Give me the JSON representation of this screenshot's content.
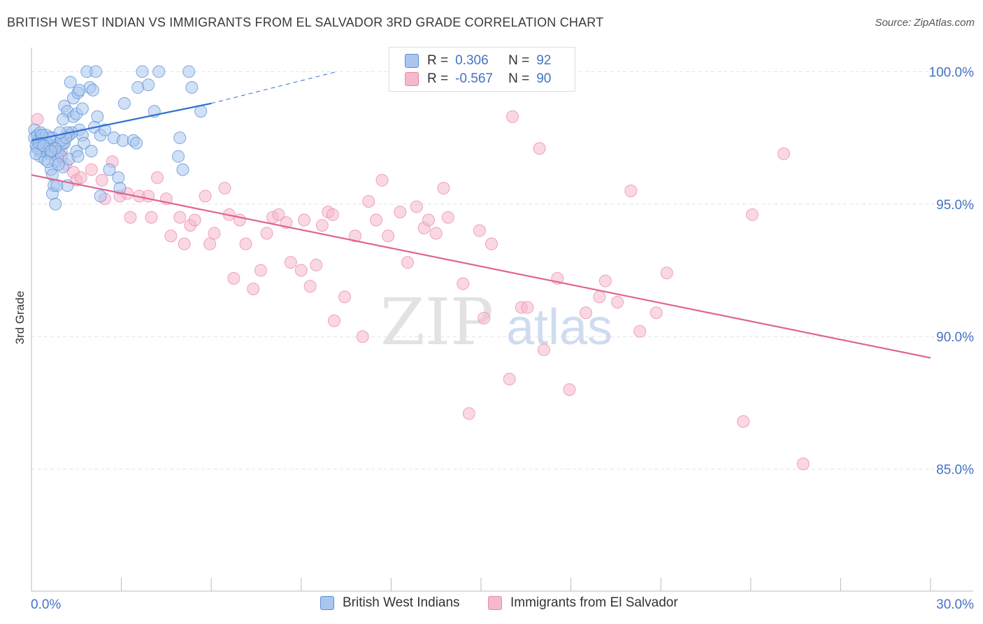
{
  "title": "BRITISH WEST INDIAN VS IMMIGRANTS FROM EL SALVADOR 3RD GRADE CORRELATION CHART",
  "source": "Source: ZipAtlas.com",
  "watermark": {
    "zip": "ZIP",
    "atlas": "atlas"
  },
  "legend": {
    "rows": [
      {
        "r_label": "R =",
        "r_value": "0.306",
        "n_label": "N =",
        "n_value": "92"
      },
      {
        "r_label": "R =",
        "r_value": "-0.567",
        "n_label": "N =",
        "n_value": "90"
      }
    ]
  },
  "bottom_legend": [
    "British West Indians",
    "Immigrants from El Salvador"
  ],
  "colors": {
    "blue_fill": "#aac6ef",
    "blue_stroke": "#5b8fd6",
    "blue_line": "#2e6fd0",
    "pink_fill": "#f6b8cc",
    "pink_stroke": "#e889a8",
    "pink_line": "#e0648e",
    "axis_text": "#4472c4",
    "grid": "#e3e3e3"
  },
  "chart_data": {
    "type": "scatter",
    "title": "BRITISH WEST INDIAN VS IMMIGRANTS FROM EL SALVADOR 3RD GRADE CORRELATION CHART",
    "xlabel": "",
    "ylabel": "3rd Grade",
    "xlim": [
      0,
      30
    ],
    "ylim": [
      80.4,
      100.8
    ],
    "x_tick_labels": [
      "0.0%",
      "30.0%"
    ],
    "y_ticks": [
      85,
      90,
      95,
      100
    ],
    "y_tick_labels": [
      "85.0%",
      "90.0%",
      "95.0%",
      "100.0%"
    ],
    "grid": true,
    "series": [
      {
        "name": "British West Indians",
        "r": 0.306,
        "n": 92,
        "trend": {
          "x": [
            0.0,
            6.0
          ],
          "y": [
            97.4,
            98.8
          ],
          "dashed_to": [
            10.2,
            100.0
          ]
        },
        "points": [
          [
            0.1,
            97.8
          ],
          [
            0.1,
            97.5
          ],
          [
            0.15,
            97.2
          ],
          [
            0.2,
            97.6
          ],
          [
            0.25,
            97.4
          ],
          [
            0.3,
            97.7
          ],
          [
            0.35,
            97.3
          ],
          [
            0.4,
            97.5
          ],
          [
            0.45,
            97.1
          ],
          [
            0.5,
            97.6
          ],
          [
            0.55,
            97.2
          ],
          [
            0.6,
            96.9
          ],
          [
            0.7,
            97.5
          ],
          [
            0.75,
            97.2
          ],
          [
            0.8,
            96.6
          ],
          [
            0.9,
            97.0
          ],
          [
            1.0,
            96.8
          ],
          [
            1.05,
            96.4
          ],
          [
            1.1,
            97.3
          ],
          [
            0.65,
            96.3
          ],
          [
            0.7,
            96.1
          ],
          [
            0.75,
            95.7
          ],
          [
            0.7,
            95.4
          ],
          [
            0.8,
            95.0
          ],
          [
            0.85,
            95.7
          ],
          [
            1.2,
            95.7
          ],
          [
            1.25,
            96.7
          ],
          [
            1.05,
            97.3
          ],
          [
            1.1,
            98.7
          ],
          [
            1.2,
            98.5
          ],
          [
            1.4,
            98.3
          ],
          [
            1.5,
            98.4
          ],
          [
            1.6,
            97.8
          ],
          [
            1.7,
            97.6
          ],
          [
            1.7,
            98.6
          ],
          [
            1.3,
            99.6
          ],
          [
            1.4,
            99.0
          ],
          [
            1.55,
            99.2
          ],
          [
            1.95,
            99.4
          ],
          [
            2.05,
            99.3
          ],
          [
            1.85,
            100.0
          ],
          [
            2.15,
            100.0
          ],
          [
            1.6,
            99.3
          ],
          [
            1.5,
            97.0
          ],
          [
            1.35,
            97.7
          ],
          [
            1.25,
            97.6
          ],
          [
            1.0,
            97.4
          ],
          [
            1.05,
            98.2
          ],
          [
            1.2,
            97.7
          ],
          [
            1.55,
            96.8
          ],
          [
            1.75,
            97.3
          ],
          [
            2.0,
            97.0
          ],
          [
            2.1,
            97.9
          ],
          [
            2.2,
            98.3
          ],
          [
            2.3,
            97.6
          ],
          [
            2.45,
            97.8
          ],
          [
            2.6,
            96.3
          ],
          [
            2.75,
            97.5
          ],
          [
            2.9,
            96.0
          ],
          [
            2.3,
            95.3
          ],
          [
            2.95,
            95.6
          ],
          [
            3.1,
            98.8
          ],
          [
            3.05,
            97.4
          ],
          [
            3.4,
            97.4
          ],
          [
            3.55,
            99.4
          ],
          [
            3.5,
            97.3
          ],
          [
            3.7,
            100.0
          ],
          [
            3.9,
            99.5
          ],
          [
            4.1,
            98.5
          ],
          [
            4.25,
            100.0
          ],
          [
            4.9,
            96.8
          ],
          [
            4.95,
            97.5
          ],
          [
            5.05,
            96.3
          ],
          [
            5.25,
            100.0
          ],
          [
            5.35,
            99.4
          ],
          [
            5.65,
            98.5
          ],
          [
            0.3,
            96.8
          ],
          [
            0.45,
            96.7
          ],
          [
            0.55,
            96.6
          ],
          [
            0.3,
            97.0
          ],
          [
            0.2,
            97.1
          ],
          [
            0.15,
            96.9
          ],
          [
            0.5,
            97.3
          ],
          [
            0.6,
            97.5
          ],
          [
            0.35,
            97.6
          ],
          [
            0.25,
            97.3
          ],
          [
            0.8,
            97.1
          ],
          [
            0.9,
            96.5
          ],
          [
            1.15,
            97.5
          ],
          [
            0.4,
            97.2
          ],
          [
            0.65,
            97.0
          ],
          [
            0.95,
            97.7
          ]
        ]
      },
      {
        "name": "Immigrants from El Salvador",
        "r": -0.567,
        "n": 90,
        "trend": {
          "x": [
            0.0,
            30.0
          ],
          "y": [
            96.1,
            89.2
          ]
        },
        "points": [
          [
            0.2,
            98.2
          ],
          [
            0.45,
            97.4
          ],
          [
            0.65,
            97.2
          ],
          [
            0.85,
            96.8
          ],
          [
            1.15,
            96.5
          ],
          [
            1.4,
            96.2
          ],
          [
            1.5,
            95.9
          ],
          [
            1.65,
            96.0
          ],
          [
            2.0,
            96.3
          ],
          [
            2.35,
            95.9
          ],
          [
            2.45,
            95.2
          ],
          [
            2.7,
            96.6
          ],
          [
            2.95,
            95.3
          ],
          [
            3.2,
            95.4
          ],
          [
            3.3,
            94.5
          ],
          [
            3.6,
            95.3
          ],
          [
            3.9,
            95.3
          ],
          [
            4.0,
            94.5
          ],
          [
            4.2,
            96.0
          ],
          [
            4.5,
            95.2
          ],
          [
            4.65,
            93.8
          ],
          [
            4.95,
            94.5
          ],
          [
            5.1,
            93.5
          ],
          [
            5.3,
            94.2
          ],
          [
            5.45,
            94.4
          ],
          [
            5.8,
            95.3
          ],
          [
            5.95,
            93.5
          ],
          [
            6.1,
            93.9
          ],
          [
            6.45,
            95.6
          ],
          [
            6.6,
            94.6
          ],
          [
            6.75,
            92.2
          ],
          [
            6.95,
            94.4
          ],
          [
            7.15,
            93.5
          ],
          [
            7.4,
            91.8
          ],
          [
            7.65,
            92.5
          ],
          [
            7.85,
            93.9
          ],
          [
            8.05,
            94.5
          ],
          [
            8.25,
            94.6
          ],
          [
            8.5,
            94.3
          ],
          [
            8.65,
            92.8
          ],
          [
            9.0,
            92.5
          ],
          [
            9.1,
            94.4
          ],
          [
            9.3,
            91.9
          ],
          [
            9.5,
            92.7
          ],
          [
            9.7,
            94.2
          ],
          [
            9.9,
            94.7
          ],
          [
            10.05,
            94.6
          ],
          [
            10.1,
            90.6
          ],
          [
            10.45,
            91.5
          ],
          [
            10.8,
            93.8
          ],
          [
            11.05,
            90.0
          ],
          [
            11.25,
            95.1
          ],
          [
            11.5,
            94.4
          ],
          [
            11.7,
            95.9
          ],
          [
            11.9,
            93.8
          ],
          [
            12.3,
            94.7
          ],
          [
            12.55,
            92.8
          ],
          [
            12.85,
            94.9
          ],
          [
            13.1,
            94.1
          ],
          [
            13.25,
            94.4
          ],
          [
            13.5,
            93.9
          ],
          [
            13.75,
            95.6
          ],
          [
            13.9,
            94.5
          ],
          [
            14.4,
            92.0
          ],
          [
            14.6,
            87.1
          ],
          [
            14.95,
            94.0
          ],
          [
            15.1,
            90.7
          ],
          [
            15.35,
            93.5
          ],
          [
            15.95,
            88.4
          ],
          [
            16.35,
            91.1
          ],
          [
            16.05,
            98.3
          ],
          [
            16.55,
            91.1
          ],
          [
            16.95,
            97.1
          ],
          [
            17.1,
            89.5
          ],
          [
            17.55,
            92.2
          ],
          [
            17.95,
            88.0
          ],
          [
            18.5,
            90.9
          ],
          [
            18.95,
            91.5
          ],
          [
            19.15,
            92.1
          ],
          [
            19.55,
            91.3
          ],
          [
            20.0,
            95.5
          ],
          [
            20.3,
            90.2
          ],
          [
            20.85,
            90.9
          ],
          [
            21.2,
            92.4
          ],
          [
            23.75,
            86.8
          ],
          [
            24.05,
            94.6
          ],
          [
            25.1,
            96.9
          ],
          [
            25.75,
            85.2
          ],
          [
            0.6,
            96.9
          ],
          [
            1.0,
            97.0
          ]
        ]
      }
    ]
  }
}
